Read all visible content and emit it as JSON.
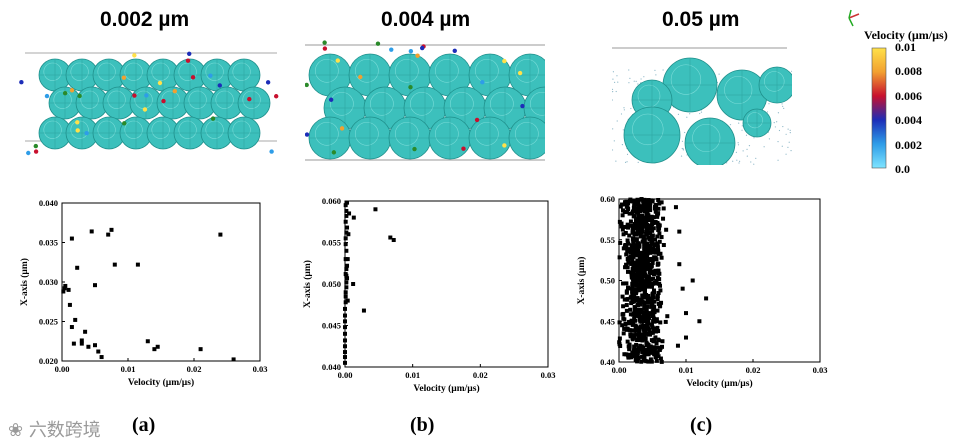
{
  "titles": {
    "a": "0.002 µm",
    "b": "0.004 µm",
    "c": "0.05 µm"
  },
  "captions": {
    "a": "(a)",
    "b": "(b)",
    "c": "(c)"
  },
  "watermark": "六数跨境",
  "colorbar": {
    "title": "Velocity (µm/µs)",
    "ticks": [
      "0.01",
      "0.008",
      "0.006",
      "0.004",
      "0.002",
      "0.0"
    ],
    "colors": [
      "#ffe14a",
      "#f2a030",
      "#c8102e",
      "#1c2db8",
      "#2e9de8",
      "#7fe5ff"
    ]
  },
  "colors": {
    "sphere": "#3cc0bc",
    "sphere_dark": "#1f8f8b",
    "point": "#000000"
  },
  "chart_data": [
    {
      "type": "scatter",
      "xlabel": "Velocity (µm/µs)",
      "ylabel": "X-axis (µm)",
      "xlim": [
        0,
        0.03
      ],
      "ylim": [
        0.02,
        0.04
      ],
      "xticks": [
        "0.00",
        "0.01",
        "0.02",
        "0.03"
      ],
      "yticks": [
        "0.020",
        "0.025",
        "0.030",
        "0.035",
        "0.040"
      ],
      "x": [
        0.0002,
        0.0004,
        0.0005,
        0.0012,
        0.0015,
        0.0018,
        0.002,
        0.0023,
        0.003,
        0.003,
        0.0035,
        0.004,
        0.0045,
        0.005,
        0.005,
        0.0055,
        0.006,
        0.007,
        0.0075,
        0.008,
        0.0115,
        0.013,
        0.014,
        0.0145,
        0.021,
        0.024,
        0.026,
        0.0015,
        0.001
      ],
      "y": [
        0.0288,
        0.0292,
        0.0295,
        0.0271,
        0.0355,
        0.0222,
        0.0252,
        0.0318,
        0.0222,
        0.0226,
        0.0237,
        0.0218,
        0.0364,
        0.022,
        0.0296,
        0.0212,
        0.0205,
        0.036,
        0.0366,
        0.0322,
        0.0322,
        0.0225,
        0.0215,
        0.0218,
        0.0215,
        0.036,
        0.0202,
        0.0243,
        0.029
      ]
    },
    {
      "type": "scatter",
      "xlabel": "Velocity (µm/µs)",
      "ylabel": "X-axis (µm)",
      "xlim": [
        0,
        0.03
      ],
      "ylim": [
        0.04,
        0.06
      ],
      "xticks": [
        "0.00",
        "0.01",
        "0.02",
        "0.03"
      ],
      "yticks": [
        "0.040",
        "0.045",
        "0.050",
        "0.055",
        "0.060"
      ],
      "x": [
        0.0,
        0.0,
        0.0,
        0.0,
        0.0,
        0.0,
        0.0,
        0.0,
        0.0,
        0.0,
        0.0001,
        0.0001,
        0.0001,
        0.0002,
        0.0002,
        0.0003,
        0.0001,
        0.0002,
        0.0003,
        0.0004,
        0.0002,
        0.0001,
        0.0001,
        0.0002,
        0.0003,
        0.0001,
        0.0002,
        0.0002,
        0.0001,
        0.0003,
        0.0001,
        0.0002,
        0.0004,
        0.0005,
        0.0006,
        0.0012,
        0.0013,
        0.0028,
        0.0045,
        0.0067,
        0.0072
      ],
      "y": [
        0.0405,
        0.0412,
        0.0418,
        0.0425,
        0.0432,
        0.044,
        0.0448,
        0.0455,
        0.0462,
        0.047,
        0.0478,
        0.0485,
        0.049,
        0.0496,
        0.0502,
        0.0507,
        0.0512,
        0.0518,
        0.0522,
        0.053,
        0.054,
        0.0548,
        0.0555,
        0.0562,
        0.0568,
        0.0575,
        0.0582,
        0.0588,
        0.0595,
        0.0598,
        0.053,
        0.051,
        0.048,
        0.056,
        0.0585,
        0.05,
        0.058,
        0.0468,
        0.059,
        0.0556,
        0.0553
      ]
    },
    {
      "type": "scatter",
      "xlabel": "Velocity (µm/µs)",
      "ylabel": "X-axis (µm)",
      "xlim": [
        0,
        0.03
      ],
      "ylim": [
        0.4,
        0.6
      ],
      "xticks": [
        "0.00",
        "0.01",
        "0.02",
        "0.03"
      ],
      "yticks": [
        "0.40",
        "0.45",
        "0.50",
        "0.55",
        "0.60"
      ],
      "cloud": {
        "n": 900,
        "x_center": 0.0035,
        "x_spread": 0.0022,
        "x_max_tail": 0.013,
        "y_range": [
          0.4,
          0.6
        ]
      },
      "x": [
        0.009,
        0.0095,
        0.01,
        0.011,
        0.012,
        0.013,
        0.009,
        0.01,
        0.0085,
        0.0088
      ],
      "y": [
        0.52,
        0.49,
        0.46,
        0.5,
        0.45,
        0.478,
        0.56,
        0.43,
        0.59,
        0.42
      ]
    }
  ]
}
